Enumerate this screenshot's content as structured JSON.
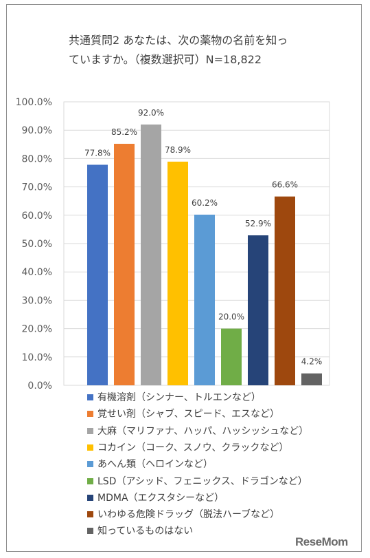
{
  "chart_data": {
    "type": "bar",
    "title_lines": [
      "共通質問2 あなたは、次の薬物の名前を知っ",
      "ていますか。（複数選択可）N=18,822"
    ],
    "categories": [
      "有機溶剤（シンナー、トルエンなど）",
      "覚せい剤（シャブ、スピード、エスなど）",
      "大麻（マリファナ、ハッパ、ハッシッシュなど）",
      "コカイン（コーク、スノウ、クラックなど）",
      "あへん類（ヘロインなど）",
      "LSD（アシッド、フェニックス、ドラゴンなど）",
      "MDMA（エクスタシーなど）",
      "いわゆる危険ドラッグ（脱法ハーブなど）",
      "知っているものはない"
    ],
    "values": [
      77.8,
      85.2,
      92.0,
      78.9,
      60.2,
      20.0,
      52.9,
      66.6,
      4.2
    ],
    "value_labels": [
      "77.8%",
      "85.2%",
      "92.0%",
      "78.9%",
      "60.2%",
      "20.0%",
      "52.9%",
      "66.6%",
      "4.2%"
    ],
    "colors": [
      "#4472c4",
      "#ed7d31",
      "#a5a5a5",
      "#ffc000",
      "#5b9bd5",
      "#70ad47",
      "#264478",
      "#9e480e",
      "#636363"
    ],
    "yticks": [
      "100.0%",
      "90.0%",
      "80.0%",
      "70.0%",
      "60.0%",
      "50.0%",
      "40.0%",
      "30.0%",
      "20.0%",
      "10.0%",
      "0.0%"
    ],
    "ylim": [
      0,
      100
    ],
    "grid": true,
    "legend_position": "bottom"
  },
  "watermark": "ReseMom"
}
